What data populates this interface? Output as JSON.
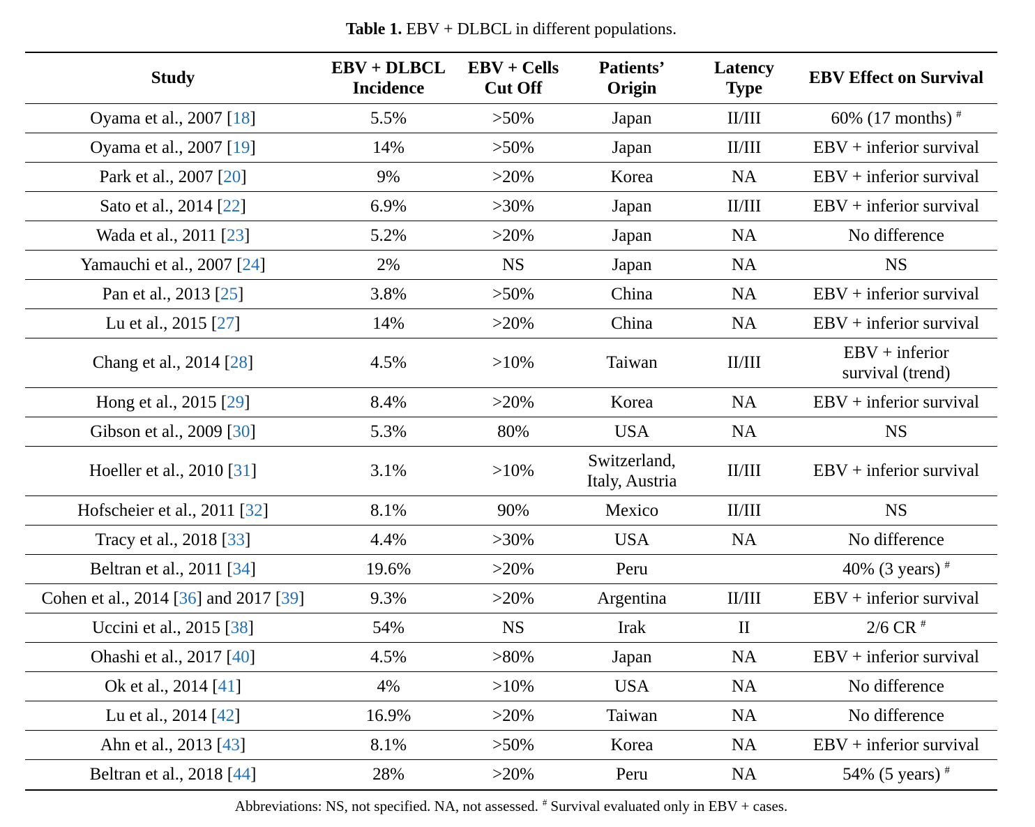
{
  "colors": {
    "text": "#000000",
    "link": "#1f6fbf",
    "rule": "#000000"
  },
  "table": {
    "caption_label": "Table 1.",
    "caption_text": "EBV + DLBCL in different populations.",
    "columns": [
      [
        "Study"
      ],
      [
        "EBV + DLBCL",
        "Incidence"
      ],
      [
        "EBV + Cells",
        "Cut Off"
      ],
      [
        "Patients’",
        "Origin"
      ],
      [
        "Latency",
        "Type"
      ],
      [
        "EBV Effect on Survival"
      ]
    ],
    "rows": [
      {
        "study": [
          {
            "text": "Oyama et al., 2007 ["
          },
          {
            "ref": "18"
          },
          {
            "text": "]"
          }
        ],
        "incidence": "5.5%",
        "cutoff": ">50%",
        "origin": "Japan",
        "latency": "II/III",
        "survival": "60% (17 months)",
        "survival_mark": "#"
      },
      {
        "study": [
          {
            "text": "Oyama et al., 2007 ["
          },
          {
            "ref": "19"
          },
          {
            "text": "]"
          }
        ],
        "incidence": "14%",
        "cutoff": ">50%",
        "origin": "Japan",
        "latency": "II/III",
        "survival": "EBV + inferior survival"
      },
      {
        "study": [
          {
            "text": "Park et al., 2007 ["
          },
          {
            "ref": "20"
          },
          {
            "text": "]"
          }
        ],
        "incidence": "9%",
        "cutoff": ">20%",
        "origin": "Korea",
        "latency": "NA",
        "survival": "EBV + inferior survival"
      },
      {
        "study": [
          {
            "text": "Sato et al., 2014 ["
          },
          {
            "ref": "22"
          },
          {
            "text": "]"
          }
        ],
        "incidence": "6.9%",
        "cutoff": ">30%",
        "origin": "Japan",
        "latency": "II/III",
        "survival": "EBV + inferior survival"
      },
      {
        "study": [
          {
            "text": "Wada et al., 2011 ["
          },
          {
            "ref": "23"
          },
          {
            "text": "]"
          }
        ],
        "incidence": "5.2%",
        "cutoff": ">20%",
        "origin": "Japan",
        "latency": "NA",
        "survival": "No difference"
      },
      {
        "study": [
          {
            "text": "Yamauchi et al., 2007 ["
          },
          {
            "ref": "24"
          },
          {
            "text": "]"
          }
        ],
        "incidence": "2%",
        "cutoff": "NS",
        "origin": "Japan",
        "latency": "NA",
        "survival": "NS"
      },
      {
        "study": [
          {
            "text": "Pan et al., 2013 ["
          },
          {
            "ref": "25"
          },
          {
            "text": "]"
          }
        ],
        "incidence": "3.8%",
        "cutoff": ">50%",
        "origin": "China",
        "latency": "NA",
        "survival": "EBV + inferior survival"
      },
      {
        "study": [
          {
            "text": "Lu et al., 2015 ["
          },
          {
            "ref": "27"
          },
          {
            "text": "]"
          }
        ],
        "incidence": "14%",
        "cutoff": ">20%",
        "origin": "China",
        "latency": "NA",
        "survival": "EBV + inferior survival"
      },
      {
        "study": [
          {
            "text": "Chang et al., 2014 ["
          },
          {
            "ref": "28"
          },
          {
            "text": "]"
          }
        ],
        "incidence": "4.5%",
        "cutoff": ">10%",
        "origin": "Taiwan",
        "latency": "II/III",
        "survival": [
          "EBV + inferior",
          "survival (trend)"
        ]
      },
      {
        "study": [
          {
            "text": "Hong et al., 2015 ["
          },
          {
            "ref": "29"
          },
          {
            "text": "]"
          }
        ],
        "incidence": "8.4%",
        "cutoff": ">20%",
        "origin": "Korea",
        "latency": "NA",
        "survival": "EBV + inferior survival"
      },
      {
        "study": [
          {
            "text": "Gibson et al., 2009 ["
          },
          {
            "ref": "30"
          },
          {
            "text": "]"
          }
        ],
        "incidence": "5.3%",
        "cutoff": "80%",
        "origin": "USA",
        "latency": "NA",
        "survival": "NS"
      },
      {
        "study": [
          {
            "text": "Hoeller et al., 2010 ["
          },
          {
            "ref": "31"
          },
          {
            "text": "]"
          }
        ],
        "incidence": "3.1%",
        "cutoff": ">10%",
        "origin": [
          "Switzerland,",
          "Italy, Austria"
        ],
        "latency": "II/III",
        "survival": "EBV + inferior survival"
      },
      {
        "study": [
          {
            "text": "Hofscheier et al., 2011 ["
          },
          {
            "ref": "32"
          },
          {
            "text": "]"
          }
        ],
        "incidence": "8.1%",
        "cutoff": "90%",
        "origin": "Mexico",
        "latency": "II/III",
        "survival": "NS"
      },
      {
        "study": [
          {
            "text": "Tracy et al., 2018 ["
          },
          {
            "ref": "33"
          },
          {
            "text": "]"
          }
        ],
        "incidence": "4.4%",
        "cutoff": ">30%",
        "origin": "USA",
        "latency": "NA",
        "survival": "No difference"
      },
      {
        "study": [
          {
            "text": "Beltran et al., 2011 ["
          },
          {
            "ref": "34"
          },
          {
            "text": "]"
          }
        ],
        "incidence": "19.6%",
        "cutoff": ">20%",
        "origin": "Peru",
        "latency": "",
        "survival": "40% (3 years)",
        "survival_mark": "#"
      },
      {
        "study": [
          {
            "text": "Cohen et al., 2014 ["
          },
          {
            "ref": "36"
          },
          {
            "text": "] and 2017 ["
          },
          {
            "ref": "39"
          },
          {
            "text": "]"
          }
        ],
        "incidence": "9.3%",
        "cutoff": ">20%",
        "origin": "Argentina",
        "latency": "II/III",
        "survival": "EBV + inferior survival"
      },
      {
        "study": [
          {
            "text": "Uccini et al., 2015 ["
          },
          {
            "ref": "38"
          },
          {
            "text": "]"
          }
        ],
        "incidence": "54%",
        "cutoff": "NS",
        "origin": "Irak",
        "latency": "II",
        "survival": "2/6 CR",
        "survival_mark": "#"
      },
      {
        "study": [
          {
            "text": "Ohashi et al., 2017 ["
          },
          {
            "ref": "40"
          },
          {
            "text": "]"
          }
        ],
        "incidence": "4.5%",
        "cutoff": ">80%",
        "origin": "Japan",
        "latency": "NA",
        "survival": "EBV + inferior survival"
      },
      {
        "study": [
          {
            "text": "Ok et al., 2014 ["
          },
          {
            "ref": "41"
          },
          {
            "text": "]"
          }
        ],
        "incidence": "4%",
        "cutoff": ">10%",
        "origin": "USA",
        "latency": "NA",
        "survival": "No difference"
      },
      {
        "study": [
          {
            "text": "Lu et al., 2014 ["
          },
          {
            "ref": "42"
          },
          {
            "text": "]"
          }
        ],
        "incidence": "16.9%",
        "cutoff": ">20%",
        "origin": "Taiwan",
        "latency": "NA",
        "survival": "No difference"
      },
      {
        "study": [
          {
            "text": "Ahn et al., 2013 ["
          },
          {
            "ref": "43"
          },
          {
            "text": "]"
          }
        ],
        "incidence": "8.1%",
        "cutoff": ">50%",
        "origin": "Korea",
        "latency": "NA",
        "survival": "EBV + inferior survival"
      },
      {
        "study": [
          {
            "text": "Beltran et al., 2018 ["
          },
          {
            "ref": "44"
          },
          {
            "text": "]"
          }
        ],
        "incidence": "28%",
        "cutoff": ">20%",
        "origin": "Peru",
        "latency": "NA",
        "survival": "54% (5 years)",
        "survival_mark": "#"
      }
    ]
  },
  "footnote": {
    "before": "Abbreviations: NS, not specified. NA, not assessed.",
    "mark": "#",
    "after": "Survival evaluated only in EBV + cases."
  }
}
